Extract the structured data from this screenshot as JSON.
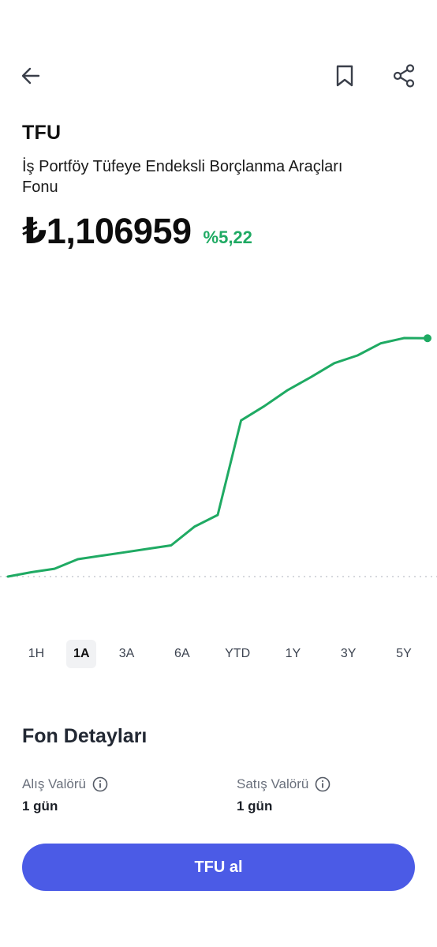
{
  "header": {
    "back_icon": "arrow-left-icon",
    "bookmark_icon": "bookmark-icon",
    "share_icon": "share-icon"
  },
  "fund": {
    "ticker": "TFU",
    "name": "İş Portföy Tüfeye Endeksli Borçlanma Araçları Fonu",
    "price": "₺1,106959",
    "change": "%5,22"
  },
  "colors": {
    "accent_green": "#1faa63",
    "button_blue": "#4b5be6"
  },
  "chart_data": {
    "type": "line",
    "title": "",
    "xlabel": "",
    "ylabel": "",
    "grid": false,
    "baseline_dotted": true,
    "series": [
      {
        "values": [
          1.052,
          1.053,
          1.0538,
          1.056,
          1.0568,
          1.0576,
          1.0584,
          1.0592,
          1.0635,
          1.0662,
          1.088,
          1.0913,
          1.095,
          1.098,
          1.1012,
          1.103,
          1.1058,
          1.107,
          1.106959
        ]
      }
    ]
  },
  "ranges": {
    "items": [
      "1H",
      "1A",
      "3A",
      "6A",
      "YTD",
      "1Y",
      "3Y",
      "5Y"
    ],
    "selected": "1A"
  },
  "details": {
    "title": "Fon Detayları",
    "alis_label": "Alış Valörü",
    "alis_value": "1 gün",
    "satis_label": "Satış Valörü",
    "satis_value": "1 gün"
  },
  "cta": {
    "label": "TFU al"
  }
}
